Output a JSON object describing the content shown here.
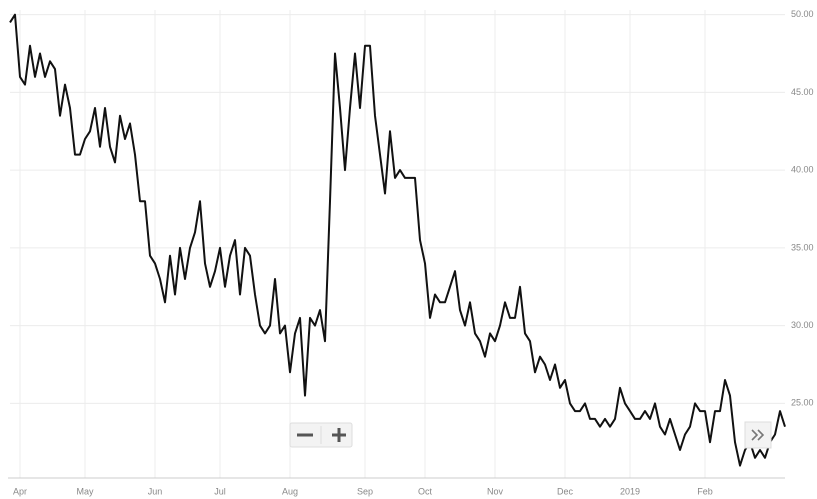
{
  "chart_data": {
    "type": "line",
    "categories": [
      null,
      null,
      "Apr",
      null,
      null,
      null,
      null,
      null,
      null,
      null,
      null,
      null,
      null,
      null,
      null,
      "May",
      null,
      null,
      null,
      null,
      null,
      null,
      null,
      null,
      null,
      null,
      null,
      null,
      null,
      "Jun",
      null,
      null,
      null,
      null,
      null,
      null,
      null,
      null,
      null,
      null,
      null,
      null,
      "Jul",
      null,
      null,
      null,
      null,
      null,
      null,
      null,
      null,
      null,
      null,
      null,
      null,
      null,
      "Aug",
      null,
      null,
      null,
      null,
      null,
      null,
      null,
      null,
      null,
      null,
      null,
      null,
      null,
      null,
      "Sep",
      null,
      null,
      null,
      null,
      null,
      null,
      null,
      null,
      null,
      null,
      null,
      "Oct",
      null,
      null,
      null,
      null,
      null,
      null,
      null,
      null,
      null,
      null,
      null,
      null,
      null,
      "Nov",
      null,
      null,
      null,
      null,
      null,
      null,
      null,
      null,
      null,
      null,
      null,
      null,
      null,
      "Dec",
      null,
      null,
      null,
      null,
      null,
      null,
      null,
      null,
      null,
      null,
      null,
      null,
      "2019",
      null,
      null,
      null,
      null,
      null,
      null,
      null,
      null,
      null,
      null,
      null,
      null,
      null,
      null,
      "Feb",
      null,
      null,
      null,
      null,
      null,
      null,
      null,
      null,
      null,
      null,
      null,
      null,
      null,
      null,
      null,
      null
    ],
    "series": [
      {
        "color": "#111111",
        "values": [
          49.5,
          50.0,
          46,
          45.5,
          48,
          46,
          47.5,
          46,
          47,
          46.5,
          43.5,
          45.5,
          44,
          41,
          41,
          42,
          42.5,
          44,
          41.5,
          44,
          41.5,
          40.5,
          43.5,
          42,
          43,
          41,
          38,
          38,
          34.5,
          34,
          33,
          31.5,
          34.5,
          32,
          35,
          33,
          35,
          36,
          38,
          34,
          32.5,
          33.5,
          35,
          32.5,
          34.5,
          35.5,
          32,
          35,
          34.5,
          32,
          30,
          29.5,
          30,
          33,
          29.5,
          30,
          27,
          29.5,
          30.5,
          25.5,
          30.5,
          30,
          31,
          29,
          38,
          47.5,
          44,
          40,
          44,
          47.5,
          44,
          48,
          48,
          43.5,
          41,
          38.5,
          42.5,
          39.5,
          40,
          39.5,
          39.5,
          39.5,
          35.5,
          34,
          30.5,
          32,
          31.5,
          31.5,
          32.5,
          33.5,
          31,
          30,
          31.5,
          29.5,
          29,
          28,
          29.5,
          29,
          30,
          31.5,
          30.5,
          30.5,
          32.5,
          29.5,
          29,
          27,
          28,
          27.5,
          26.5,
          27.5,
          26,
          26.5,
          25,
          24.5,
          24.5,
          25,
          24,
          24,
          23.5,
          24,
          23.5,
          24,
          26,
          25,
          24.5,
          24,
          24,
          24.5,
          24,
          25,
          23.5,
          23,
          24,
          23,
          22,
          23,
          23.5,
          25,
          24.5,
          24.5,
          22.5,
          24.5,
          24.5,
          26.5,
          25.5,
          22.5,
          21,
          22,
          22.5,
          21.5,
          22,
          21.5,
          22.5,
          23,
          24.5,
          23.5
        ]
      }
    ],
    "ylim": [
      20.2,
      50.3
    ],
    "yticks": [
      {
        "value": 25,
        "label": "25.00"
      },
      {
        "value": 30,
        "label": "30.00"
      },
      {
        "value": 35,
        "label": "35.00"
      },
      {
        "value": 40,
        "label": "40.00"
      },
      {
        "value": 45,
        "label": "45.00"
      },
      {
        "value": 50,
        "label": "50.00"
      }
    ],
    "grid": true
  }
}
